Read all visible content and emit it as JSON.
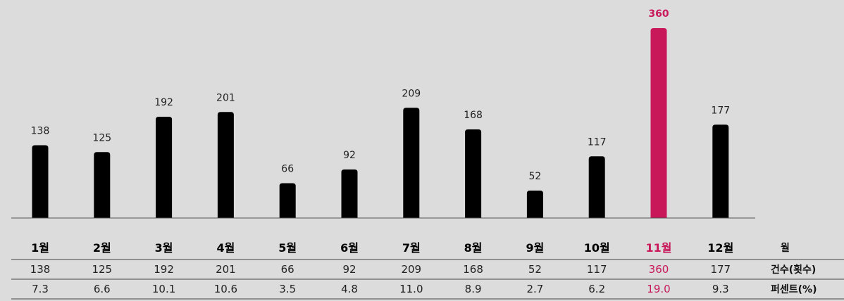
{
  "colors": {
    "bar": "#000000",
    "highlight": "#c8185a",
    "background": "#dcdcdc",
    "text": "#222222",
    "rule": "#555555"
  },
  "chart_data": {
    "type": "bar",
    "categories": [
      "1월",
      "2월",
      "3월",
      "4월",
      "5월",
      "6월",
      "7월",
      "8월",
      "9월",
      "10월",
      "11월",
      "12월"
    ],
    "values": [
      138,
      125,
      192,
      201,
      66,
      92,
      209,
      168,
      52,
      117,
      360,
      177
    ],
    "value_labels": [
      "138",
      "125",
      "192",
      "201",
      "66",
      "92",
      "209",
      "168",
      "52",
      "117",
      "360",
      "177"
    ],
    "percent_labels": [
      "7.3",
      "6.6",
      "10.1",
      "10.6",
      "3.5",
      "4.8",
      "11.0",
      "8.9",
      "2.7",
      "6.2",
      "19.0",
      "9.3"
    ],
    "highlight_index": 10,
    "ylim": [
      0,
      360
    ],
    "grid": false,
    "table_row_labels": {
      "month": "월",
      "count": "건수(횟수)",
      "percent": "퍼센트(%)"
    }
  }
}
